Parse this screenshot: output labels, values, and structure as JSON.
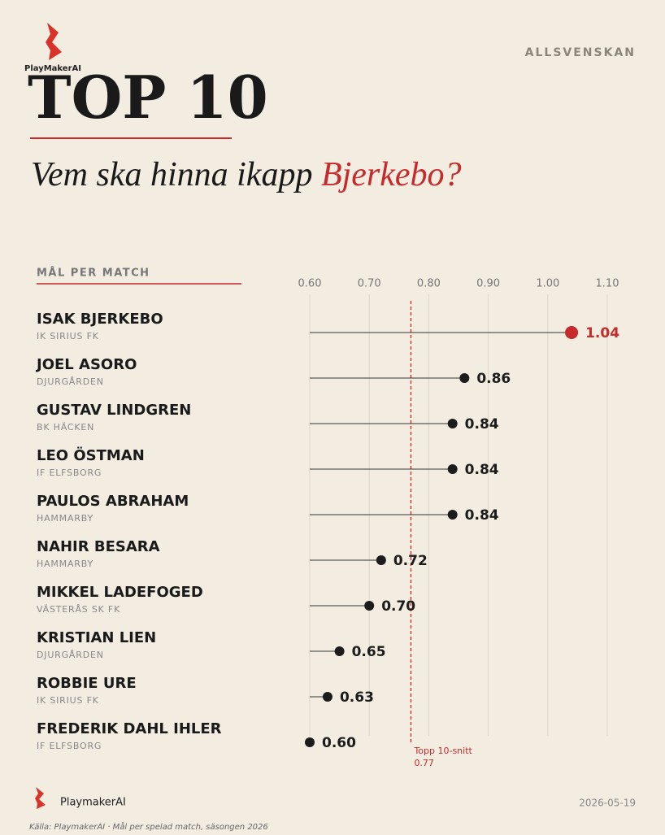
{
  "header": {
    "brand": "PlayMakerAI",
    "league": "ALLSVENSKAN",
    "title": "TOP 10",
    "subtitle": "Vem ska hinna ikapp ",
    "subtitle_highlight": "Bjerkebo?"
  },
  "chart_data": {
    "type": "lollipop",
    "axis_label": "MÅL PER MATCH",
    "categories": [
      "ISAK BJERKEBO",
      "JOEL ASORO",
      "GUSTAV LINDGREN",
      "LEO ÖSTMAN",
      "PAULOS ABRAHAM",
      "NAHIR BESARA",
      "MIKKEL LADEFOGED",
      "KRISTIAN LIEN",
      "ROBBIE URE",
      "FREDERIK DAHL IHLER"
    ],
    "teams": [
      "IK SIRIUS FK",
      "DJURGÅRDEN",
      "BK HÄCKEN",
      "IF ELFSBORG",
      "HAMMARBY",
      "HAMMARBY",
      "VÄSTERÅS SK FK",
      "DJURGÅRDEN",
      "IK SIRIUS FK",
      "IF ELFSBORG"
    ],
    "values": [
      1.04,
      0.86,
      0.84,
      0.84,
      0.84,
      0.72,
      0.7,
      0.65,
      0.63,
      0.6
    ],
    "value_labels": [
      "1.04",
      "0.86",
      "0.84",
      "0.84",
      "0.84",
      "0.72",
      "0.70",
      "0.65",
      "0.63",
      "0.60"
    ],
    "colors": [
      "#c62a2a",
      "#1c1c1c",
      "#1c1c1c",
      "#1c1c1c",
      "#1c1c1c",
      "#1c1c1c",
      "#1c1c1c",
      "#1c1c1c",
      "#1c1c1c",
      "#1c1c1c"
    ],
    "xlim": [
      0.6,
      1.1
    ],
    "xticks": [
      {
        "value": 0.6,
        "label": "0.60"
      },
      {
        "value": 0.7,
        "label": "0.70"
      },
      {
        "value": 0.8,
        "label": "0.80"
      },
      {
        "value": 0.9,
        "label": "0.90"
      },
      {
        "value": 1.0,
        "label": "1.00"
      },
      {
        "value": 1.1,
        "label": "1.10"
      }
    ],
    "grid": true,
    "reference": {
      "label": "Topp 10-snitt",
      "value": 0.77,
      "color": "#c62a2a"
    }
  },
  "footer": {
    "brand": "PlaymakerAI",
    "date": "2026-05-19",
    "source": "Källa: PlaymakerAI · Mål per spelad match, säsongen 2026"
  }
}
